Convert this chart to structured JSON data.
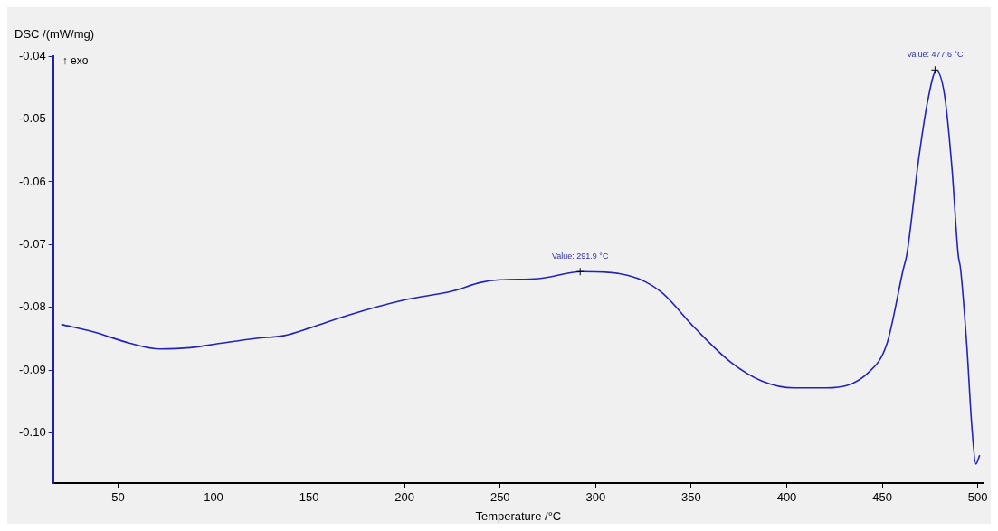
{
  "chart_data": {
    "type": "line",
    "xlabel": "Temperature /°C",
    "ylabel": "DSC /(mW/mg)",
    "annotations": [
      "↑ exo",
      {
        "text": "Value: 291.9 °C",
        "x": 291.9,
        "y": -0.0743
      },
      {
        "text": "Value: 477.6 °C",
        "x": 477.6,
        "y": -0.0422
      }
    ],
    "series": [
      {
        "color": "#2323b8",
        "x": [
          20.3,
          37.4,
          56.3,
          72,
          87.8,
          103.5,
          122.5,
          136.6,
          151,
          169.7,
          200,
          225,
          240,
          250,
          270,
          292.7,
          317,
          333.8,
          352,
          370.7,
          387,
          404,
          420.8,
          442.6,
          452.5,
          461,
          462.9,
          469,
          473.8,
          478.3,
          482.6,
          486.5,
          489.7,
          491,
          494.3,
          496.8,
          499,
          501
        ],
        "values": [
          -0.0827,
          -0.0839,
          -0.0857,
          -0.0866,
          -0.0864,
          -0.0857,
          -0.0849,
          -0.0845,
          -0.0832,
          -0.0813,
          -0.0788,
          -0.0774,
          -0.076,
          -0.0756,
          -0.0754,
          -0.0743,
          -0.0749,
          -0.0774,
          -0.0833,
          -0.0887,
          -0.0917,
          -0.0928,
          -0.0928,
          -0.0904,
          -0.0857,
          -0.0739,
          -0.0715,
          -0.0565,
          -0.0471,
          -0.0423,
          -0.0462,
          -0.0579,
          -0.0715,
          -0.0739,
          -0.0863,
          -0.0986,
          -0.1049,
          -0.1035
        ]
      }
    ],
    "xlim": [
      16,
      503
    ],
    "ylim": [
      -0.108,
      -0.04
    ],
    "xticks": [
      50,
      100,
      150,
      200,
      250,
      300,
      350,
      400,
      450,
      500
    ],
    "yticks": [
      -0.04,
      -0.05,
      -0.06,
      -0.07,
      -0.08,
      -0.09,
      {
        "value": -0.1,
        "label": "-0.10"
      }
    ],
    "grid": false,
    "legend": false,
    "marker": "none",
    "line_style": "solid"
  }
}
